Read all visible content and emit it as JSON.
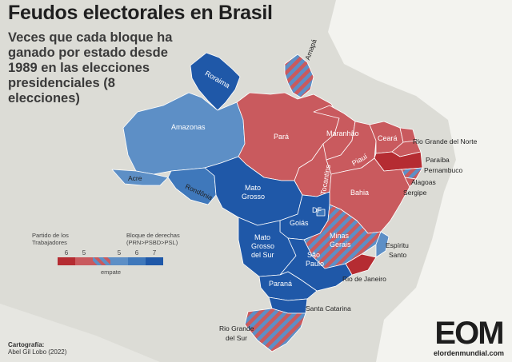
{
  "title": "Feudos electorales en Brasil",
  "subtitle": "Veces que cada bloque ha ganado por estado desde 1989 en las elecciones presidenciales (8 elecciones)",
  "legend": {
    "left_label": "Partido de los Trabajadores",
    "right_label": "Bloque de derechas (PRN>PSBD>PSL)",
    "tie_label": "empate",
    "swatches": [
      {
        "count": "6",
        "color": "#b52c32"
      },
      {
        "count": "5",
        "color": "#c95a5e"
      },
      {
        "count": "",
        "color": "tie"
      },
      {
        "count": "5",
        "color": "#5d8fc6"
      },
      {
        "count": "6",
        "color": "#3f78bb"
      },
      {
        "count": "7",
        "color": "#1f58a8"
      }
    ]
  },
  "colors": {
    "pt6": "#b52c32",
    "pt5": "#c95a5e",
    "right5": "#5d8fc6",
    "right6": "#3f78bb",
    "right7": "#1f58a8",
    "tie_a": "#c95a5e",
    "tie_b": "#5d8fc6"
  },
  "states": [
    {
      "name": "Roraima",
      "class": "right7"
    },
    {
      "name": "Amapá",
      "class": "tie"
    },
    {
      "name": "Amazonas",
      "class": "right5"
    },
    {
      "name": "Pará",
      "class": "pt5"
    },
    {
      "name": "Acre",
      "class": "right5"
    },
    {
      "name": "Rondônia",
      "class": "right6"
    },
    {
      "name": "Maranhão",
      "class": "pt5"
    },
    {
      "name": "Ceará",
      "class": "pt5"
    },
    {
      "name": "Rio Grande del Norte",
      "class": "pt5"
    },
    {
      "name": "Piauí",
      "class": "pt5"
    },
    {
      "name": "Paraíba",
      "class": "pt5"
    },
    {
      "name": "Pernambuco",
      "class": "pt6"
    },
    {
      "name": "Alagoas",
      "class": "tie"
    },
    {
      "name": "Sergipe",
      "class": "pt5"
    },
    {
      "name": "Tocantins",
      "class": "pt5"
    },
    {
      "name": "Bahia",
      "class": "pt5"
    },
    {
      "name": "Mato Grosso",
      "class": "right7"
    },
    {
      "name": "Goiás",
      "class": "right7"
    },
    {
      "name": "DF",
      "class": "right6"
    },
    {
      "name": "Minas Gerais",
      "class": "tie"
    },
    {
      "name": "Espíritu Santo",
      "class": "right5"
    },
    {
      "name": "Mato Grosso del Sur",
      "class": "right7"
    },
    {
      "name": "São Paulo",
      "class": "right7"
    },
    {
      "name": "Rio de Janeiro",
      "class": "pt6"
    },
    {
      "name": "Paraná",
      "class": "right7"
    },
    {
      "name": "Santa Catarina",
      "class": "right7"
    },
    {
      "name": "Rio Grande del Sur",
      "class": "tie"
    }
  ],
  "credit": {
    "heading": "Cartografía:",
    "author": "Abel Gil Lobo (2022)"
  },
  "logo": {
    "mark": "EOM",
    "url": "elordenmundial.com"
  }
}
